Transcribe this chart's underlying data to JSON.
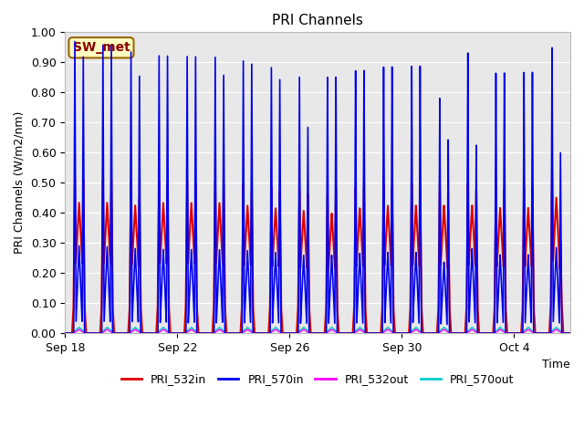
{
  "title": "PRI Channels",
  "ylabel": "PRI Channels (W/m2/nm)",
  "xlabel": "Time",
  "annotation": "SW_met",
  "ylim": [
    0.0,
    1.0
  ],
  "yticks": [
    0.0,
    0.1,
    0.2,
    0.3,
    0.4,
    0.5,
    0.6,
    0.7,
    0.8,
    0.9,
    1.0
  ],
  "bg_color": "#e8e8e8",
  "fig_color": "#ffffff",
  "series": {
    "PRI_532in": {
      "color": "#dd0000",
      "lw": 1.5,
      "zorder": 3
    },
    "PRI_570in": {
      "color": "#0000ee",
      "lw": 1.2,
      "zorder": 4
    },
    "PRI_532out": {
      "color": "#ff00ff",
      "lw": 1.0,
      "zorder": 2
    },
    "PRI_570out": {
      "color": "#00cccc",
      "lw": 1.0,
      "zorder": 1
    }
  },
  "legend_order": [
    "PRI_532in",
    "PRI_570in",
    "PRI_532out",
    "PRI_570out"
  ],
  "annotation_bbox": {
    "facecolor": "#ffffc0",
    "edgecolor": "#996600",
    "linewidth": 1.5
  },
  "num_cycles": 18,
  "peak_532in": [
    0.51,
    0.51,
    0.5,
    0.51,
    0.51,
    0.51,
    0.5,
    0.49,
    0.48,
    0.47,
    0.49,
    0.5,
    0.5,
    0.5,
    0.5,
    0.49,
    0.49,
    0.53
  ],
  "peak_570in": [
    0.97,
    0.96,
    0.94,
    0.93,
    0.93,
    0.93,
    0.92,
    0.9,
    0.87,
    0.87,
    0.89,
    0.9,
    0.9,
    0.79,
    0.94,
    0.87,
    0.87,
    0.95
  ],
  "peak2_532in": [
    0.51,
    0.51,
    0.45,
    0.5,
    0.5,
    0.5,
    0.48,
    0.48,
    0.47,
    0.49,
    0.49,
    0.49,
    0.49,
    0.41,
    0.48,
    0.48,
    0.48,
    0.3
  ],
  "peak2_570in": [
    0.92,
    0.96,
    0.86,
    0.93,
    0.93,
    0.87,
    0.91,
    0.86,
    0.7,
    0.87,
    0.89,
    0.9,
    0.9,
    0.65,
    0.63,
    0.87,
    0.87,
    0.6
  ],
  "peak_532out": [
    0.013,
    0.013,
    0.013,
    0.013,
    0.013,
    0.013,
    0.013,
    0.013,
    0.013,
    0.013,
    0.013,
    0.013,
    0.013,
    0.013,
    0.013,
    0.013,
    0.013,
    0.013
  ],
  "peak_570out": [
    0.02,
    0.02,
    0.02,
    0.02,
    0.02,
    0.02,
    0.02,
    0.02,
    0.02,
    0.02,
    0.02,
    0.02,
    0.02,
    0.02,
    0.02,
    0.02,
    0.02,
    0.02
  ],
  "xticklabels": [
    "Sep 18",
    "Sep 22",
    "Sep 26",
    "Sep 30",
    "Oct 4"
  ],
  "xtick_positions": [
    0,
    4,
    8,
    12,
    16
  ]
}
